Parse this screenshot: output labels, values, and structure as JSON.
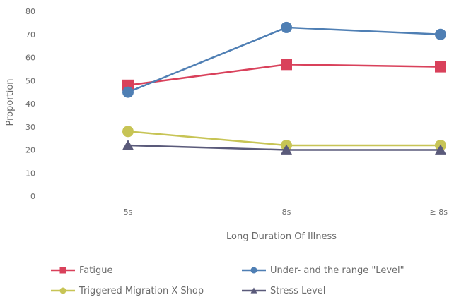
{
  "chart_data": {
    "type": "line",
    "categories": [
      "5s",
      "8s",
      "≥ 8s"
    ],
    "xlabel": "Long Duration Of Illness",
    "ylabel": "Proportion",
    "ylim": [
      0,
      80
    ],
    "yticks": [
      0,
      10,
      20,
      30,
      40,
      50,
      60,
      70,
      80
    ],
    "grid": false,
    "legend_position": "bottom",
    "series": [
      {
        "name": "Fatigue",
        "values": [
          48,
          57,
          56
        ],
        "color": "#d9415b",
        "marker": "square"
      },
      {
        "name": "Under- and the range \"Level\"",
        "values": [
          45,
          73,
          70
        ],
        "color": "#4f7fb4",
        "marker": "circle"
      },
      {
        "name": "Triggered Migration X Shop",
        "values": [
          28,
          22,
          22
        ],
        "color": "#c7c455",
        "marker": "circle"
      },
      {
        "name": "Stress Level",
        "values": [
          22,
          20,
          20
        ],
        "color": "#5a5a7a",
        "marker": "triangle"
      }
    ]
  }
}
